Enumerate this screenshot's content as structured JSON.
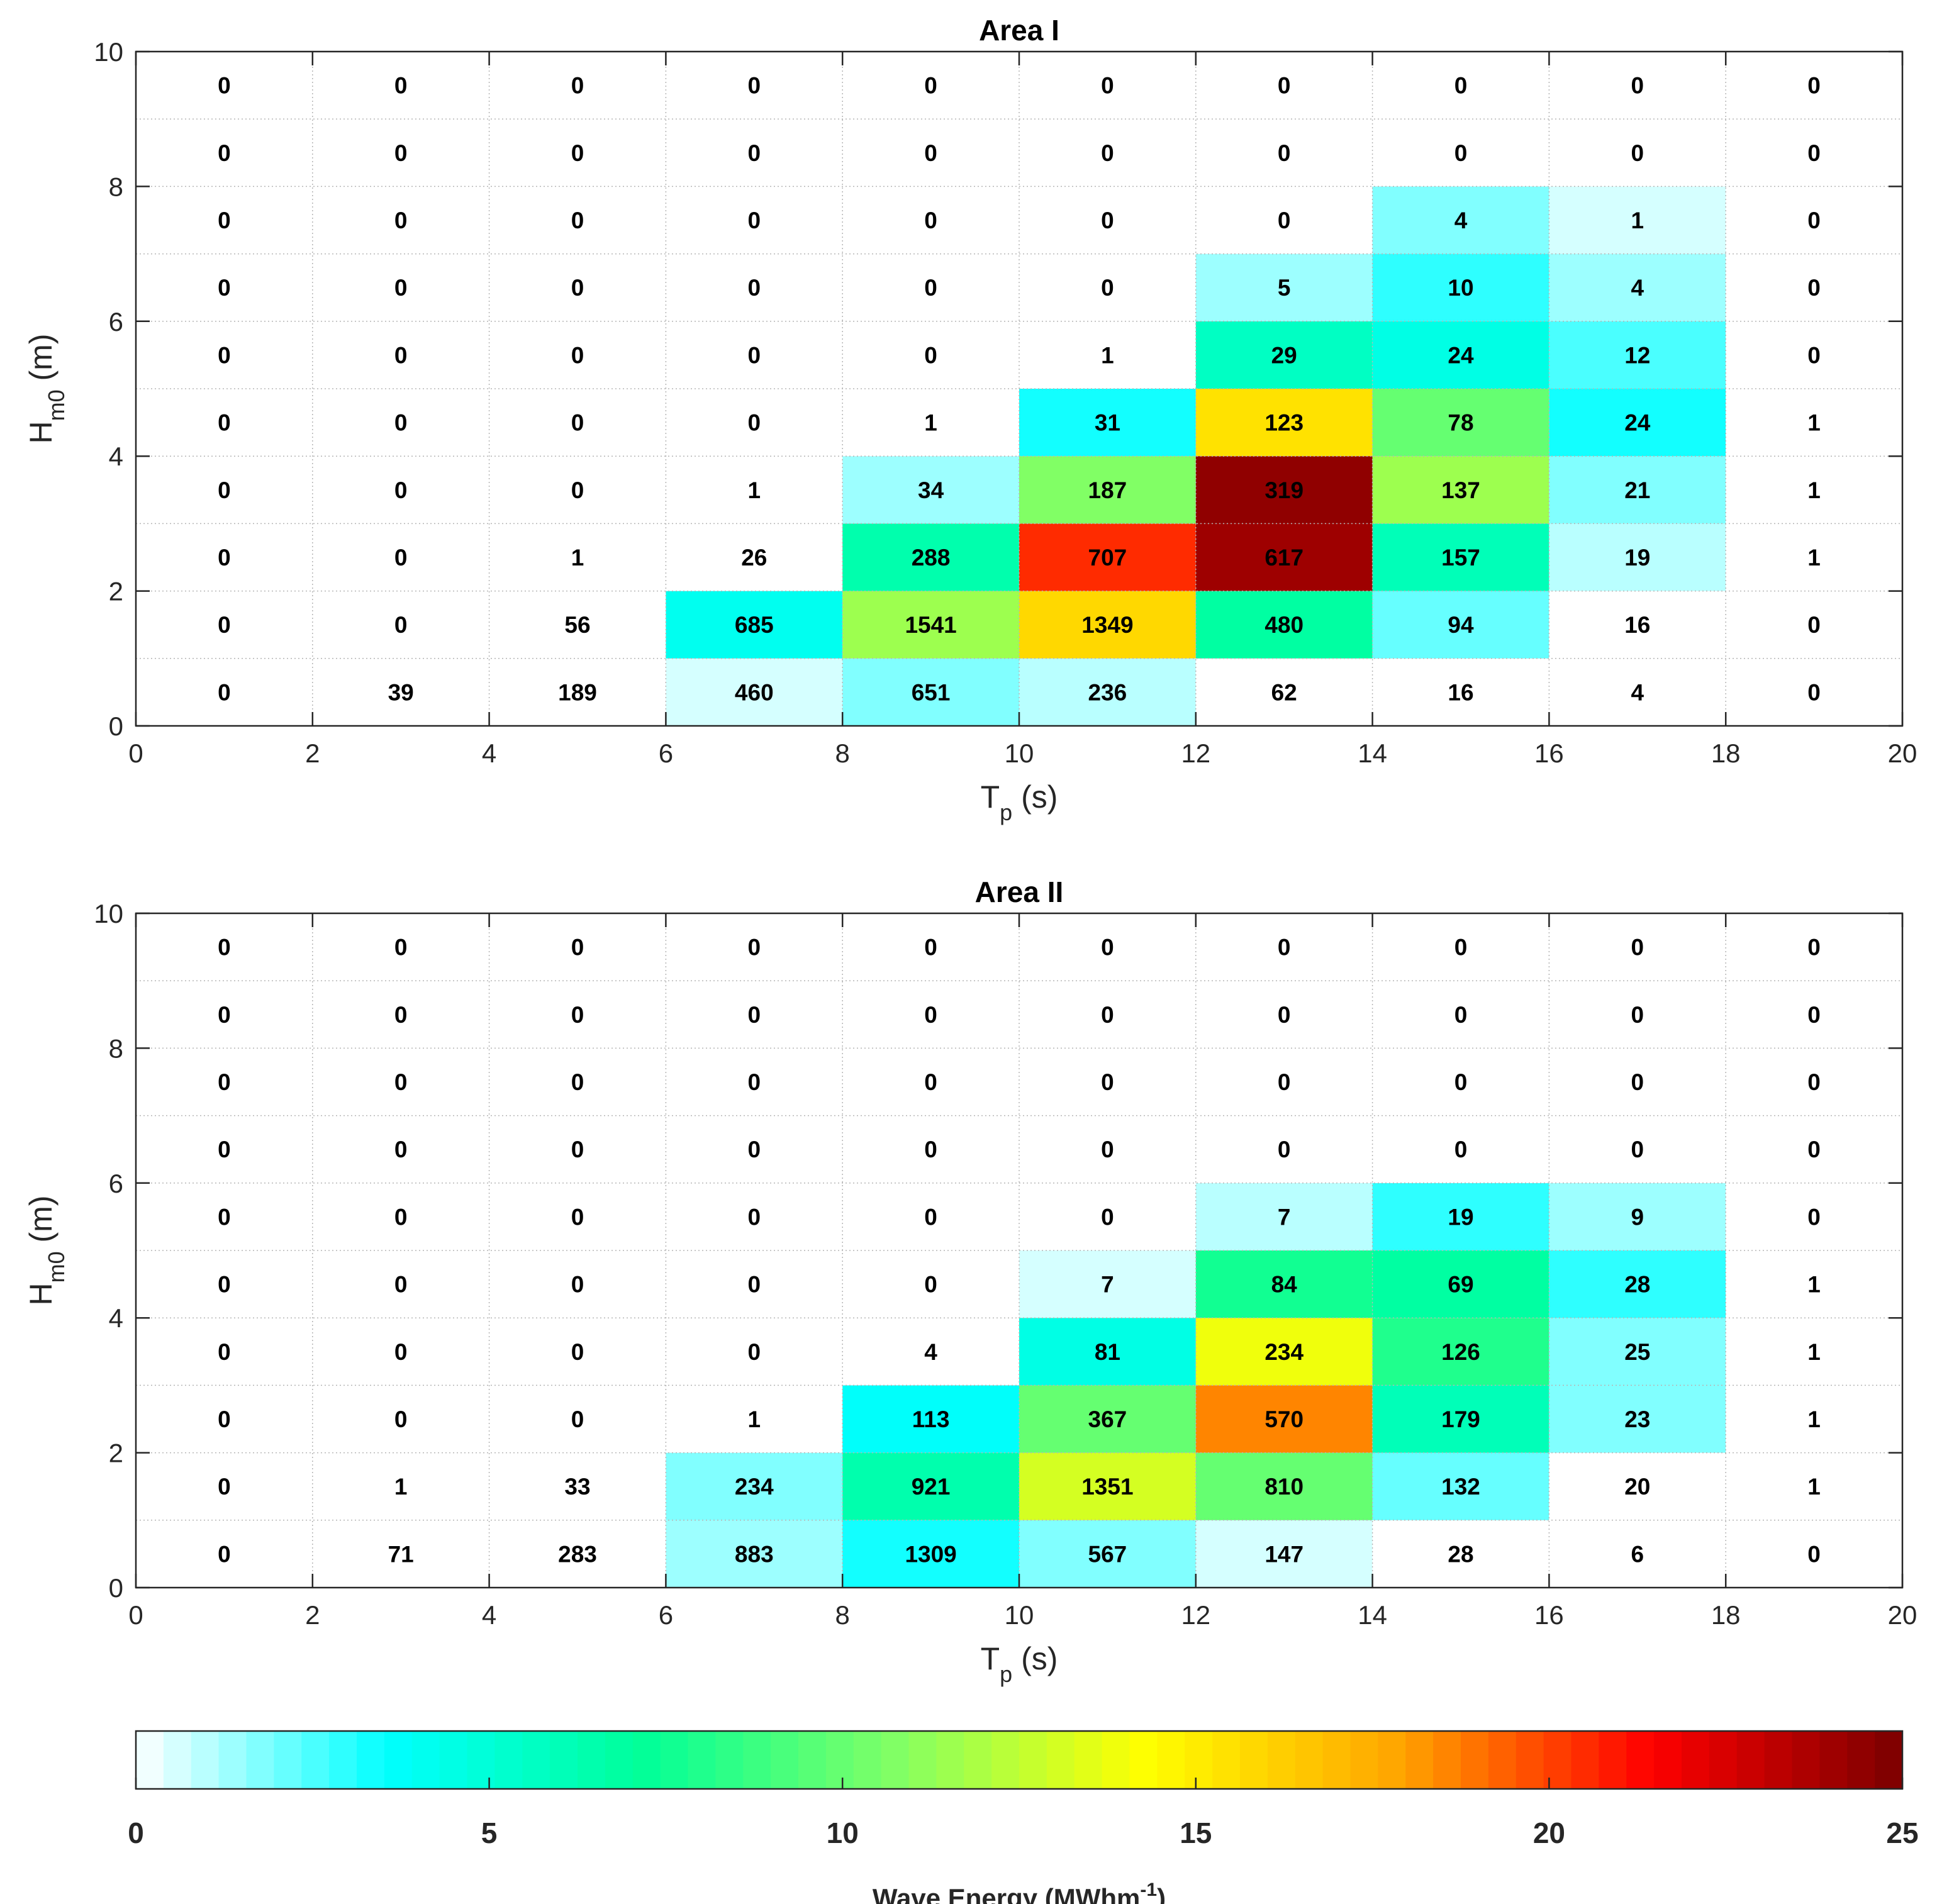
{
  "chart_data": [
    {
      "type": "heatmap",
      "title": "Area I",
      "xlabel": {
        "main": "T",
        "sub": "p",
        "unit": " (s)"
      },
      "ylabel": {
        "main": "H",
        "sub": "m0",
        "unit": " (m)"
      },
      "xlim": [
        0,
        20
      ],
      "ylim": [
        0,
        10
      ],
      "xticks": [
        0,
        2,
        4,
        6,
        8,
        10,
        12,
        14,
        16,
        18,
        20
      ],
      "yticks": [
        0,
        2,
        4,
        6,
        8,
        10
      ],
      "bin_width_x": 2,
      "bin_width_y": 1,
      "rows_note": "rows ordered from Hm0 bin 0-1 (bottom) to 9-10 (top); columns Tp bins 0-2 ... 18-20",
      "counts": [
        [
          0,
          39,
          189,
          460,
          651,
          236,
          62,
          16,
          4,
          0
        ],
        [
          0,
          0,
          56,
          685,
          1541,
          1349,
          480,
          94,
          16,
          0
        ],
        [
          0,
          0,
          1,
          26,
          288,
          707,
          617,
          157,
          19,
          1
        ],
        [
          0,
          0,
          0,
          1,
          34,
          187,
          319,
          137,
          21,
          1
        ],
        [
          0,
          0,
          0,
          0,
          1,
          31,
          123,
          78,
          24,
          1
        ],
        [
          0,
          0,
          0,
          0,
          0,
          1,
          29,
          24,
          12,
          0
        ],
        [
          0,
          0,
          0,
          0,
          0,
          0,
          5,
          10,
          4,
          0
        ],
        [
          0,
          0,
          0,
          0,
          0,
          0,
          0,
          4,
          1,
          0
        ],
        [
          0,
          0,
          0,
          0,
          0,
          0,
          0,
          0,
          0,
          0
        ],
        [
          0,
          0,
          0,
          0,
          0,
          0,
          0,
          0,
          0,
          0
        ]
      ],
      "energy": [
        [
          0,
          0,
          0,
          0.5,
          1.8,
          1.0,
          0,
          0,
          0,
          0
        ],
        [
          0,
          0,
          0,
          4.1,
          11.7,
          15.9,
          6.7,
          2.0,
          0,
          0
        ],
        [
          0,
          0,
          0,
          0,
          6.3,
          20.5,
          24.2,
          6.2,
          1.0,
          0
        ],
        [
          0,
          0,
          0,
          0,
          1.4,
          10.8,
          24.3,
          11.6,
          1.9,
          0
        ],
        [
          0,
          0,
          0,
          0,
          0,
          3.4,
          15.5,
          10.1,
          3.3,
          0
        ],
        [
          0,
          0,
          0,
          0,
          0,
          0,
          5.7,
          4.3,
          2.5,
          0
        ],
        [
          0,
          0,
          0,
          0,
          0,
          0,
          1.5,
          3.0,
          1.3,
          0
        ],
        [
          0,
          0,
          0,
          0,
          0,
          0,
          0,
          1.6,
          0.5,
          0
        ],
        [
          0,
          0,
          0,
          0,
          0,
          0,
          0,
          0,
          0,
          0
        ],
        [
          0,
          0,
          0,
          0,
          0,
          0,
          0,
          0,
          0,
          0
        ]
      ]
    },
    {
      "type": "heatmap",
      "title": "Area II",
      "xlabel": {
        "main": "T",
        "sub": "p",
        "unit": " (s)"
      },
      "ylabel": {
        "main": "H",
        "sub": "m0",
        "unit": " (m)"
      },
      "xlim": [
        0,
        20
      ],
      "ylim": [
        0,
        10
      ],
      "xticks": [
        0,
        2,
        4,
        6,
        8,
        10,
        12,
        14,
        16,
        18,
        20
      ],
      "yticks": [
        0,
        2,
        4,
        6,
        8,
        10
      ],
      "bin_width_x": 2,
      "bin_width_y": 1,
      "rows_note": "rows ordered from Hm0 bin 0-1 (bottom) to 9-10 (top); columns Tp bins 0-2 ... 18-20",
      "counts": [
        [
          0,
          71,
          283,
          883,
          1309,
          567,
          147,
          28,
          6,
          0
        ],
        [
          0,
          1,
          33,
          234,
          921,
          1351,
          810,
          132,
          20,
          1
        ],
        [
          0,
          0,
          0,
          1,
          113,
          367,
          570,
          179,
          23,
          1
        ],
        [
          0,
          0,
          0,
          0,
          4,
          81,
          234,
          126,
          25,
          1
        ],
        [
          0,
          0,
          0,
          0,
          0,
          7,
          84,
          69,
          28,
          1
        ],
        [
          0,
          0,
          0,
          0,
          0,
          0,
          7,
          19,
          9,
          0
        ],
        [
          0,
          0,
          0,
          0,
          0,
          0,
          0,
          0,
          0,
          0
        ],
        [
          0,
          0,
          0,
          0,
          0,
          0,
          0,
          0,
          0,
          0
        ],
        [
          0,
          0,
          0,
          0,
          0,
          0,
          0,
          0,
          0,
          0
        ],
        [
          0,
          0,
          0,
          0,
          0,
          0,
          0,
          0,
          0,
          0
        ]
      ],
      "energy": [
        [
          0,
          0,
          0,
          1.5,
          3.3,
          1.9,
          0.6,
          0,
          0,
          0
        ],
        [
          0,
          0,
          0,
          1.6,
          6.6,
          13.0,
          9.8,
          2.0,
          0,
          0
        ],
        [
          0,
          0,
          0,
          0,
          3.8,
          10.1,
          18.5,
          6.2,
          1.6,
          0
        ],
        [
          0,
          0,
          0,
          0,
          0,
          4.5,
          13.8,
          8.0,
          1.8,
          0
        ],
        [
          0,
          0,
          0,
          0,
          0,
          0.6,
          7.7,
          6.9,
          3.1,
          0
        ],
        [
          0,
          0,
          0,
          0,
          0,
          0,
          1.1,
          3.0,
          1.4,
          0
        ],
        [
          0,
          0,
          0,
          0,
          0,
          0,
          0,
          0,
          0,
          0
        ],
        [
          0,
          0,
          0,
          0,
          0,
          0,
          0,
          0,
          0,
          0
        ],
        [
          0,
          0,
          0,
          0,
          0,
          0,
          0,
          0,
          0,
          0
        ],
        [
          0,
          0,
          0,
          0,
          0,
          0,
          0,
          0,
          0,
          0
        ]
      ]
    }
  ],
  "colorbar": {
    "range": [
      0,
      25
    ],
    "ticks": [
      0,
      5,
      10,
      15,
      20,
      25
    ],
    "label_main": "Wave Energy (MWhm",
    "label_sup": "-1",
    "label_end": ")",
    "steps": 64,
    "colormap": [
      "#ffffff",
      "#00ffff",
      "#00ff99",
      "#80ff66",
      "#ffff00",
      "#ffa500",
      "#ff0000",
      "#7a0000"
    ]
  }
}
